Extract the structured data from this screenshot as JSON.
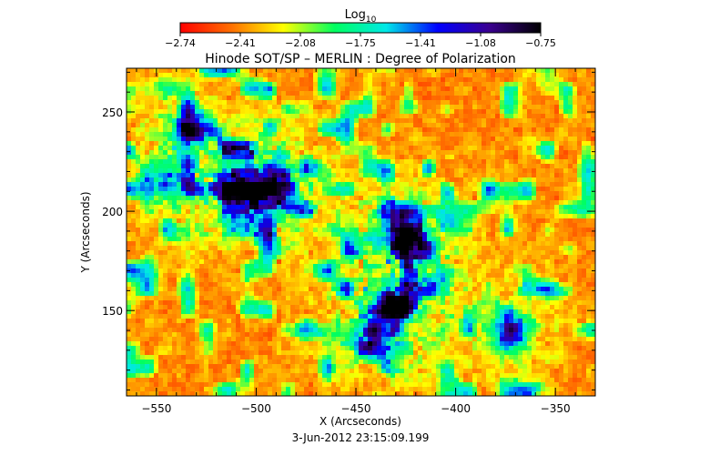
{
  "chart_data": {
    "type": "heatmap",
    "title": "Hinode SOT/SP – MERLIN : Degree of Polarization",
    "xlabel": "X (Arcseconds)",
    "ylabel": "Y (Arcseconds)",
    "timestamp": "3-Jun-2012 23:15:09.199",
    "colorbar": {
      "label_base": "Log",
      "label_sub": "10",
      "ticks": [
        "-2.74",
        "-2.41",
        "-2.08",
        "-1.75",
        "-1.41",
        "-1.08",
        "-0.75"
      ],
      "range": [
        -2.74,
        -0.75
      ],
      "colors": [
        "#ff0000",
        "#ff7000",
        "#ffff00",
        "#00ff60",
        "#00e8e8",
        "#0000ff",
        "#3a0090",
        "#000000"
      ]
    },
    "xlim": [
      -565,
      -330
    ],
    "ylim": [
      107,
      272
    ],
    "xticks": [
      -550,
      -500,
      -450,
      -400,
      -350
    ],
    "yticks": [
      150,
      200,
      250
    ],
    "features": [
      {
        "x": -425,
        "y": 188,
        "strength": 1.0
      },
      {
        "x": -492,
        "y": 212,
        "strength": 0.95
      },
      {
        "x": -510,
        "y": 212,
        "strength": 0.7
      },
      {
        "x": -432,
        "y": 152,
        "strength": 0.75
      },
      {
        "x": -440,
        "y": 136,
        "strength": 0.6
      },
      {
        "x": -372,
        "y": 140,
        "strength": 0.65
      },
      {
        "x": -535,
        "y": 240,
        "strength": 0.45
      },
      {
        "x": -545,
        "y": 215,
        "strength": 0.4
      }
    ]
  }
}
